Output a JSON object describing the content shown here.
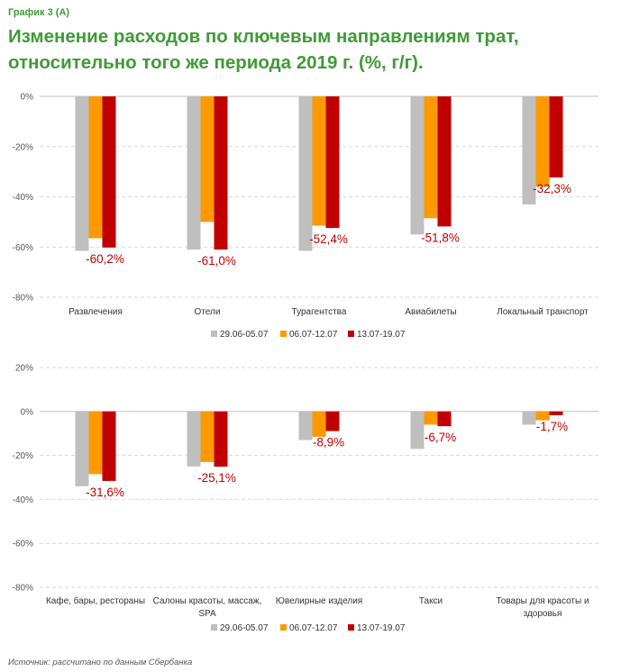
{
  "header": {
    "label": "График 3 (А)",
    "title_line1": "Изменение расходов по ключевым направлениям трат,",
    "title_line2": "относительно того же периода 2019 г.  (%, г/г)."
  },
  "source": "Источник: рассчитано по данным Сбербанка",
  "colors": {
    "s1": "#bfbfbf",
    "s2": "#ff9900",
    "s3": "#c00000",
    "grid": "#d9d9d9",
    "label": "#c00000"
  },
  "chart_data": [
    {
      "type": "bar",
      "categories": [
        "Развлечения",
        "Отели",
        "Турагентства",
        "Авиабилеты",
        "Локальный транспорт"
      ],
      "series": [
        {
          "name": "29.06-05.07",
          "values": [
            -61.5,
            -61.0,
            -61.5,
            -55.0,
            -43.0
          ]
        },
        {
          "name": "06.07-12.07",
          "values": [
            -56.5,
            -50.0,
            -51.5,
            -48.5,
            -36.0
          ]
        },
        {
          "name": "13.07-19.07",
          "values": [
            -60.2,
            -61.0,
            -52.4,
            -51.8,
            -32.3
          ]
        }
      ],
      "data_labels": [
        "-60,2%",
        "-61,0%",
        "-52,4%",
        "-51,8%",
        "-32,3%"
      ],
      "yticks": [
        "0%",
        "-20%",
        "-40%",
        "-60%",
        "-80%"
      ],
      "ylim": [
        -80,
        0
      ],
      "grid": true,
      "legend": "bottom"
    },
    {
      "type": "bar",
      "categories": [
        "Кафе, бары, рестораны",
        "Салоны красоты, массаж, SPA",
        "Ювелирные изделия",
        "Такси",
        "Товары для красоты и здоровья"
      ],
      "series": [
        {
          "name": "29.06-05.07",
          "values": [
            -34.0,
            -25.0,
            -13.0,
            -17.0,
            -6.0
          ]
        },
        {
          "name": "06.07-12.07",
          "values": [
            -28.5,
            -23.0,
            -11.5,
            -6.0,
            -4.0
          ]
        },
        {
          "name": "13.07-19.07",
          "values": [
            -31.6,
            -25.1,
            -8.9,
            -6.7,
            -1.7
          ]
        }
      ],
      "data_labels": [
        "-31,6%",
        "-25,1%",
        "-8,9%",
        "-6,7%",
        "-1,7%"
      ],
      "yticks": [
        "20%",
        "0%",
        "-20%",
        "-40%",
        "-60%",
        "-80%"
      ],
      "ylim": [
        -80,
        20
      ],
      "grid": true,
      "legend": "bottom"
    }
  ]
}
